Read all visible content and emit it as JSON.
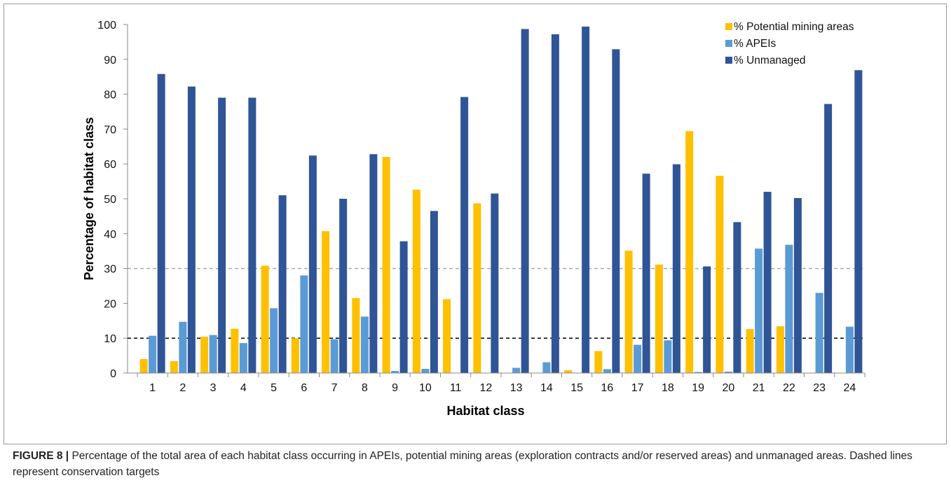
{
  "chart_data": {
    "type": "bar",
    "categories": [
      "1",
      "2",
      "3",
      "4",
      "5",
      "6",
      "7",
      "8",
      "9",
      "10",
      "11",
      "12",
      "13",
      "14",
      "15",
      "16",
      "17",
      "18",
      "19",
      "20",
      "21",
      "22",
      "23",
      "24"
    ],
    "series": [
      {
        "name": "% Potential mining areas",
        "color": "#ffc000",
        "values": [
          4,
          3.4,
          10.4,
          12.7,
          30.8,
          10,
          40.7,
          21.5,
          62,
          52.6,
          21.2,
          48.7,
          0,
          0,
          0.8,
          6.3,
          35.1,
          31.1,
          69.4,
          56.6,
          12.6,
          13.4,
          0,
          0
        ]
      },
      {
        "name": "% APEIs",
        "color": "#5b9bd5",
        "values": [
          10.7,
          14.7,
          10.9,
          8.6,
          18.6,
          28,
          9.7,
          16.2,
          0.6,
          1.2,
          0,
          0,
          1.5,
          3.1,
          0,
          1.1,
          8.1,
          9.4,
          0.3,
          0.4,
          35.7,
          36.8,
          23,
          13.3
        ]
      },
      {
        "name": "% Unmanaged",
        "color": "#2f5597",
        "values": [
          85.8,
          82.2,
          79,
          79,
          51,
          62.4,
          50,
          62.8,
          37.8,
          46.5,
          79.2,
          51.5,
          98.7,
          97.2,
          99.4,
          92.9,
          57.2,
          59.9,
          30.6,
          43.3,
          52,
          50.2,
          77.2,
          86.9
        ]
      }
    ],
    "ylim": [
      0,
      100
    ],
    "yticks": [
      0,
      10,
      20,
      30,
      40,
      50,
      60,
      70,
      80,
      90,
      100
    ],
    "xlabel": "Habitat class",
    "ylabel": "Percentage of habitat class",
    "reference_lines": [
      {
        "value": 30,
        "color": "#aaaaaa"
      },
      {
        "value": 10,
        "color": "#000000"
      }
    ],
    "legend": "top-right"
  },
  "caption_label": "FIGURE 8 |",
  "caption": "Percentage of the total area of each habitat class occurring in APEIs, potential mining areas (exploration contracts and/or reserved areas) and unmanaged areas. Dashed lines represent conservation targets"
}
